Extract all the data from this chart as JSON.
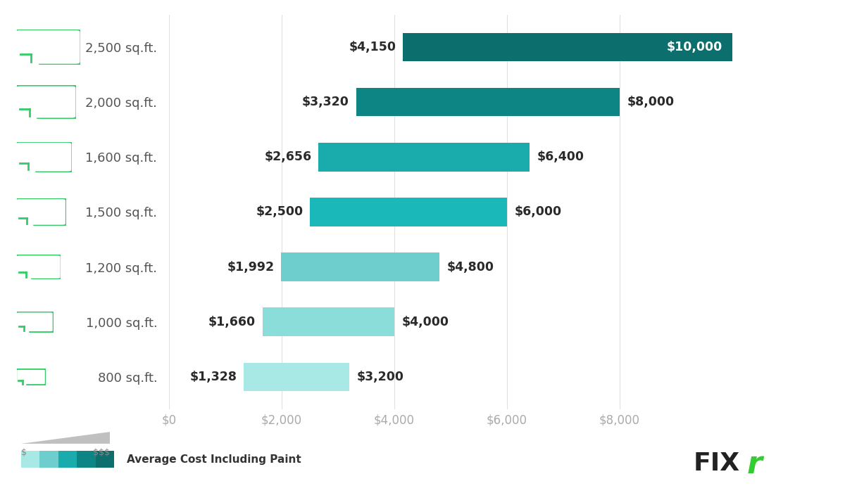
{
  "categories": [
    "2,500 sq.ft.",
    "2,000 sq.ft.",
    "1,600 sq.ft.",
    "1,500 sq.ft.",
    "1,200 sq.ft.",
    "1,000 sq.ft.",
    "800 sq.ft."
  ],
  "low_values": [
    4150,
    3320,
    2656,
    2500,
    1992,
    1660,
    1328
  ],
  "high_values": [
    10000,
    8000,
    6400,
    6000,
    4800,
    4000,
    3200
  ],
  "low_labels": [
    "$4,150",
    "$3,320",
    "$2,656",
    "$2,500",
    "$1,992",
    "$1,660",
    "$1,328"
  ],
  "high_labels": [
    "$10,000",
    "$8,000",
    "$6,400",
    "$6,000",
    "$4,800",
    "$4,000",
    "$3,200"
  ],
  "bar_colors": [
    "#0d6e6e",
    "#0d8585",
    "#1aacac",
    "#1ab8b8",
    "#6ecece",
    "#8addd8",
    "#a8e8e5"
  ],
  "background_color": "#ffffff",
  "xlim": [
    0,
    10500
  ],
  "xticks": [
    0,
    2000,
    4000,
    6000,
    8000
  ],
  "xtick_labels": [
    "$0",
    "$2,000",
    "$4,000",
    "$6,000",
    "$8,000"
  ],
  "bar_height": 0.52,
  "legend_text": "Average Cost Including Paint",
  "legend_grad_colors": [
    "#a8e8e5",
    "#6ecece",
    "#1aacac",
    "#0d8585",
    "#0d6e6e"
  ],
  "icon_green": "#33cc66",
  "fixr_color_fix": "#222222",
  "fixr_color_r": "#33cc33"
}
